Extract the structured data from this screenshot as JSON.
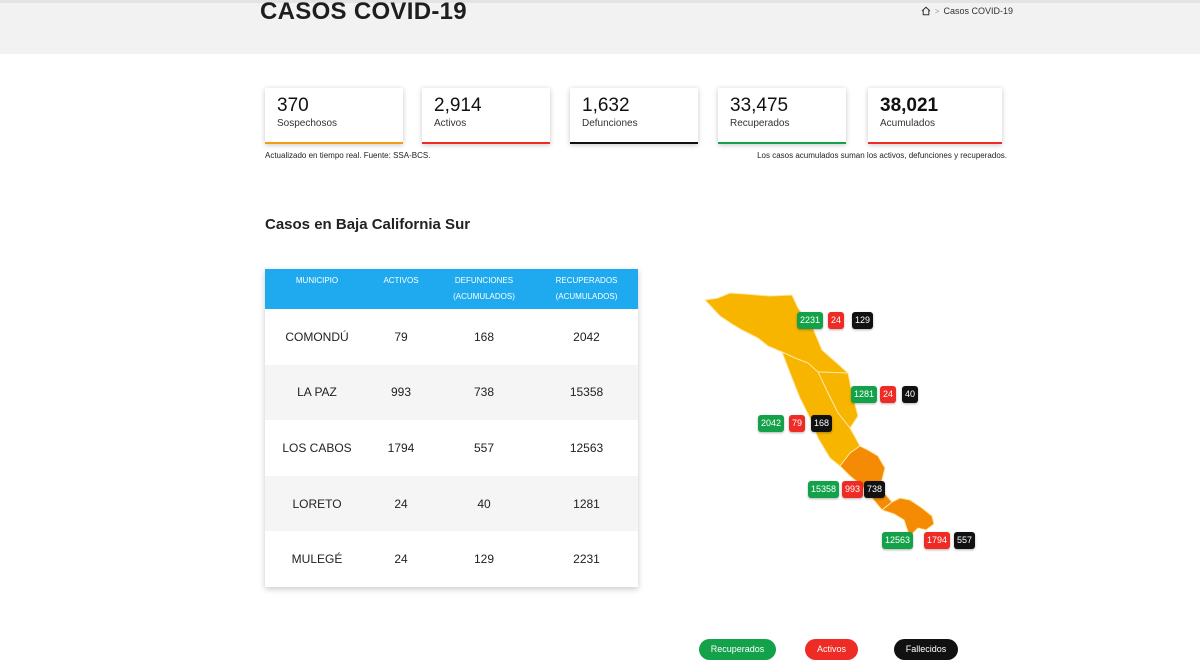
{
  "header": {
    "title": "CASOS COVID-19",
    "breadcrumb": {
      "home_icon": "home-icon",
      "separator": ">",
      "current": "Casos COVID-19"
    }
  },
  "stats": [
    {
      "value": "370",
      "label": "Sospechosos",
      "color": "#f39c12"
    },
    {
      "value": "2,914",
      "label": "Activos",
      "color": "#ee2b24"
    },
    {
      "value": "1,632",
      "label": "Defunciones",
      "color": "#111111"
    },
    {
      "value": "33,475",
      "label": "Recuperados",
      "color": "#13a24a"
    },
    {
      "value": "38,021",
      "label": "Acumulados",
      "color": "#ee2b24"
    }
  ],
  "notes": {
    "left": "Actualizado en tiempo real. Fuente: SSA-BCS.",
    "right": "Los casos acumulados suman los activos, defunciones y recuperados."
  },
  "section_title": "Casos en Baja California Sur",
  "table": {
    "header_color": "#1faaf0",
    "headers": [
      [
        "MUNICIPIO",
        ""
      ],
      [
        "ACTIVOS",
        ""
      ],
      [
        "DEFUNCIONES",
        "(ACUMULADOS)"
      ],
      [
        "RECUPERADOS",
        "(ACUMULADOS)"
      ]
    ],
    "rows": [
      {
        "municipio": "COMONDÚ",
        "activos": "79",
        "defunciones": "168",
        "recuperados": "2042"
      },
      {
        "municipio": "LA PAZ",
        "activos": "993",
        "defunciones": "738",
        "recuperados": "15358"
      },
      {
        "municipio": "LOS CABOS",
        "activos": "1794",
        "defunciones": "557",
        "recuperados": "12563"
      },
      {
        "municipio": "LORETO",
        "activos": "24",
        "defunciones": "40",
        "recuperados": "1281"
      },
      {
        "municipio": "MULEGÉ",
        "activos": "24",
        "defunciones": "129",
        "recuperados": "2231"
      }
    ]
  },
  "map": {
    "colors": {
      "yellow": "#f7b500",
      "orange": "#f58a05",
      "border": "#ffe6a0"
    },
    "markers": [
      {
        "region": "Mulegé",
        "recuperados": "2231",
        "activos": "24",
        "fallecidos": "129"
      },
      {
        "region": "Loreto",
        "recuperados": "1281",
        "activos": "24",
        "fallecidos": "40"
      },
      {
        "region": "Comondú",
        "recuperados": "2042",
        "activos": "79",
        "fallecidos": "168"
      },
      {
        "region": "La Paz",
        "recuperados": "15358",
        "activos": "993",
        "fallecidos": "738"
      },
      {
        "region": "Los Cabos",
        "recuperados": "12563",
        "activos": "1794",
        "fallecidos": "557"
      }
    ]
  },
  "legend": {
    "recuperados": "Recuperados",
    "activos": "Activos",
    "fallecidos": "Fallecidos"
  }
}
